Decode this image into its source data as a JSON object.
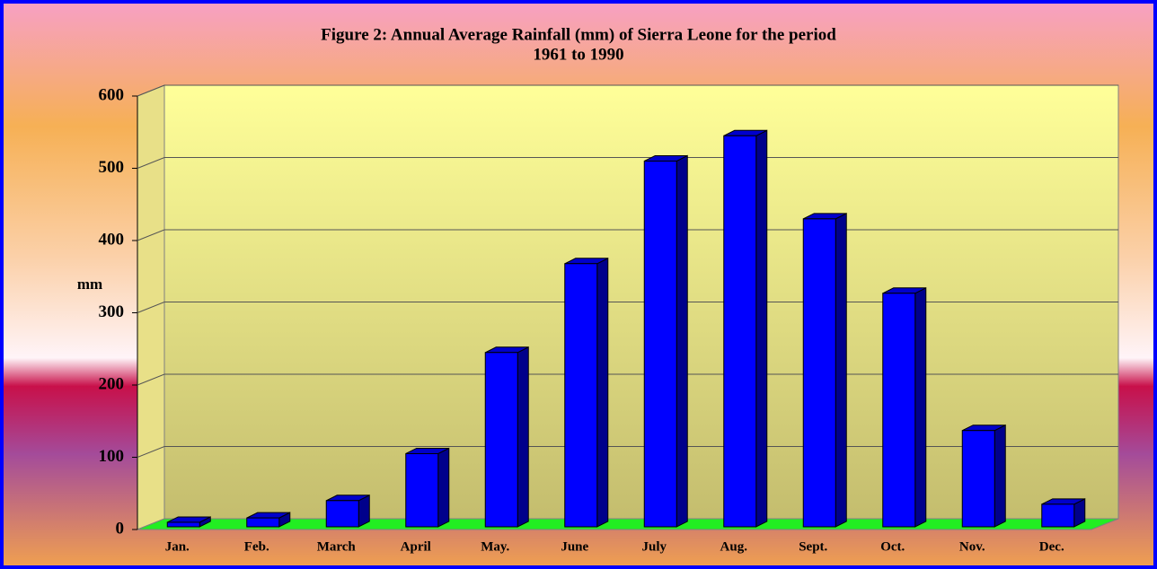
{
  "chart_data": {
    "type": "bar3d",
    "title": [
      "Figure 2: Annual Average Rainfall (mm) of Sierra Leone for the period",
      "1961 to 1990"
    ],
    "y_label": "mm",
    "categories": [
      "Jan.",
      "Feb.",
      "March",
      "April",
      "May.",
      "June",
      "July",
      "Aug.",
      "Sept.",
      "Oct.",
      "Nov.",
      "Dec."
    ],
    "values": [
      10,
      16,
      40,
      105,
      245,
      368,
      510,
      545,
      430,
      327,
      137,
      35
    ],
    "color": "#0000ff",
    "ylim": [
      0,
      600
    ],
    "yticks": [
      0,
      100,
      200,
      300,
      400,
      500,
      600
    ],
    "grid": true
  }
}
